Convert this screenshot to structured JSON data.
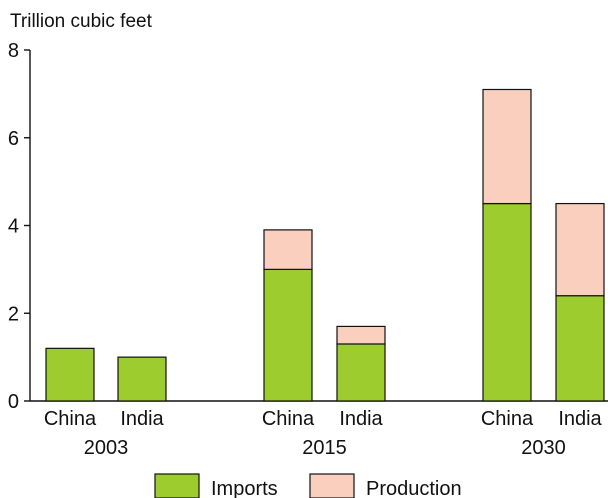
{
  "chart_data": {
    "type": "bar",
    "stacked": true,
    "ylabel": "Trillion cubic feet",
    "ylim": [
      0,
      8
    ],
    "yticks": [
      0,
      2,
      4,
      6,
      8
    ],
    "grid": false,
    "legend_position": "bottom-center",
    "groups": [
      {
        "label": "2003",
        "bars": [
          {
            "category": "China",
            "values": {
              "Imports": 1.2,
              "Production": 0
            }
          },
          {
            "category": "India",
            "values": {
              "Imports": 1.0,
              "Production": 0
            }
          }
        ]
      },
      {
        "label": "2015",
        "bars": [
          {
            "category": "China",
            "values": {
              "Imports": 3.0,
              "Production": 0.9
            }
          },
          {
            "category": "India",
            "values": {
              "Imports": 1.3,
              "Production": 0.4
            }
          }
        ]
      },
      {
        "label": "2030",
        "bars": [
          {
            "category": "China",
            "values": {
              "Imports": 4.5,
              "Production": 2.6
            }
          },
          {
            "category": "India",
            "values": {
              "Imports": 2.4,
              "Production": 2.1
            }
          }
        ]
      }
    ],
    "series": [
      {
        "name": "Imports",
        "color": "#9ccc2e"
      },
      {
        "name": "Production",
        "color": "#fbcfbd"
      }
    ]
  }
}
